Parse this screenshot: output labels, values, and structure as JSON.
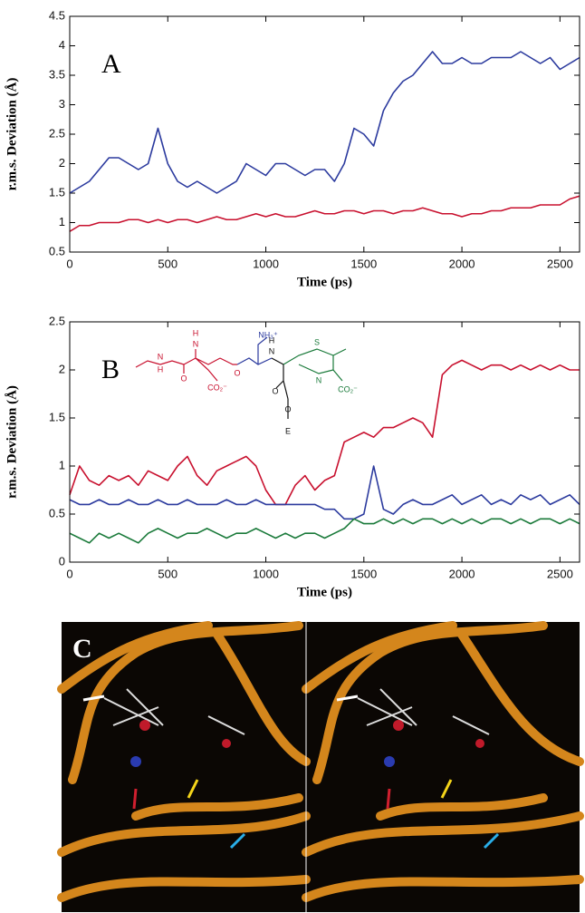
{
  "chart_data": [
    {
      "type": "line",
      "panel_label": "A",
      "x_label": "Time (ps)",
      "y_label": "r.m.s. Deviation (Å)",
      "xlim": [
        0,
        2600
      ],
      "xticks": [
        0,
        500,
        1000,
        1500,
        2000,
        2500
      ],
      "ylim": [
        0.5,
        4.5
      ],
      "yticks": [
        0.5,
        1,
        1.5,
        2,
        2.5,
        3,
        3.5,
        4,
        4.5
      ],
      "x": [
        0,
        50,
        100,
        150,
        200,
        250,
        300,
        350,
        400,
        450,
        500,
        550,
        600,
        650,
        700,
        750,
        800,
        850,
        900,
        950,
        1000,
        1050,
        1100,
        1150,
        1200,
        1250,
        1300,
        1350,
        1400,
        1450,
        1500,
        1550,
        1600,
        1650,
        1700,
        1750,
        1800,
        1850,
        1900,
        1950,
        2000,
        2050,
        2100,
        2150,
        2200,
        2250,
        2300,
        2350,
        2400,
        2450,
        2500,
        2550,
        2600
      ],
      "series": [
        {
          "color": "#2b3a9e",
          "values": [
            1.5,
            1.6,
            1.7,
            1.9,
            2.1,
            2.1,
            2.0,
            1.9,
            2.0,
            2.6,
            2.0,
            1.7,
            1.6,
            1.7,
            1.6,
            1.5,
            1.6,
            1.7,
            2.0,
            1.9,
            1.8,
            2.0,
            2.0,
            1.9,
            1.8,
            1.9,
            1.9,
            1.7,
            2.0,
            2.6,
            2.5,
            2.3,
            2.9,
            3.2,
            3.4,
            3.5,
            3.7,
            3.9,
            3.7,
            3.7,
            3.8,
            3.7,
            3.7,
            3.8,
            3.8,
            3.8,
            3.9,
            3.8,
            3.7,
            3.8,
            3.6,
            3.7,
            3.8
          ]
        },
        {
          "color": "#c8102e",
          "values": [
            0.85,
            0.95,
            0.95,
            1.0,
            1.0,
            1.0,
            1.05,
            1.05,
            1.0,
            1.05,
            1.0,
            1.05,
            1.05,
            1.0,
            1.05,
            1.1,
            1.05,
            1.05,
            1.1,
            1.15,
            1.1,
            1.15,
            1.1,
            1.1,
            1.15,
            1.2,
            1.15,
            1.15,
            1.2,
            1.2,
            1.15,
            1.2,
            1.2,
            1.15,
            1.2,
            1.2,
            1.25,
            1.2,
            1.15,
            1.15,
            1.1,
            1.15,
            1.15,
            1.2,
            1.2,
            1.25,
            1.25,
            1.25,
            1.3,
            1.3,
            1.3,
            1.4,
            1.45
          ]
        }
      ]
    },
    {
      "type": "line",
      "panel_label": "B",
      "x_label": "Time (ps)",
      "y_label": "r.m.s. Deviation (Å)",
      "xlim": [
        0,
        2600
      ],
      "xticks": [
        0,
        500,
        1000,
        1500,
        2000,
        2500
      ],
      "ylim": [
        0,
        2.5
      ],
      "yticks": [
        0,
        0.5,
        1,
        1.5,
        2,
        2.5
      ],
      "x": [
        0,
        50,
        100,
        150,
        200,
        250,
        300,
        350,
        400,
        450,
        500,
        550,
        600,
        650,
        700,
        750,
        800,
        850,
        900,
        950,
        1000,
        1050,
        1100,
        1150,
        1200,
        1250,
        1300,
        1350,
        1400,
        1450,
        1500,
        1550,
        1600,
        1650,
        1700,
        1750,
        1800,
        1850,
        1900,
        1950,
        2000,
        2050,
        2100,
        2150,
        2200,
        2250,
        2300,
        2350,
        2400,
        2450,
        2500,
        2550,
        2600
      ],
      "series": [
        {
          "color": "#c8102e",
          "values": [
            0.7,
            1.0,
            0.85,
            0.8,
            0.9,
            0.85,
            0.9,
            0.8,
            0.95,
            0.9,
            0.85,
            1.0,
            1.1,
            0.9,
            0.8,
            0.95,
            1.0,
            1.05,
            1.1,
            1.0,
            0.75,
            0.6,
            0.6,
            0.8,
            0.9,
            0.75,
            0.85,
            0.9,
            1.25,
            1.3,
            1.35,
            1.3,
            1.4,
            1.4,
            1.45,
            1.5,
            1.45,
            1.3,
            1.95,
            2.05,
            2.1,
            2.05,
            2.0,
            2.05,
            2.05,
            2.0,
            2.05,
            2.0,
            2.05,
            2.0,
            2.05,
            2.0,
            2.0
          ]
        },
        {
          "color": "#2b3a9e",
          "values": [
            0.65,
            0.6,
            0.6,
            0.65,
            0.6,
            0.6,
            0.65,
            0.6,
            0.6,
            0.65,
            0.6,
            0.6,
            0.65,
            0.6,
            0.6,
            0.6,
            0.65,
            0.6,
            0.6,
            0.65,
            0.6,
            0.6,
            0.6,
            0.6,
            0.6,
            0.6,
            0.55,
            0.55,
            0.45,
            0.45,
            0.5,
            1.0,
            0.55,
            0.5,
            0.6,
            0.65,
            0.6,
            0.6,
            0.65,
            0.7,
            0.6,
            0.65,
            0.7,
            0.6,
            0.65,
            0.6,
            0.7,
            0.65,
            0.7,
            0.6,
            0.65,
            0.7,
            0.6
          ]
        },
        {
          "color": "#1a7a3a",
          "values": [
            0.3,
            0.25,
            0.2,
            0.3,
            0.25,
            0.3,
            0.25,
            0.2,
            0.3,
            0.35,
            0.3,
            0.25,
            0.3,
            0.3,
            0.35,
            0.3,
            0.25,
            0.3,
            0.3,
            0.35,
            0.3,
            0.25,
            0.3,
            0.25,
            0.3,
            0.3,
            0.25,
            0.3,
            0.35,
            0.45,
            0.4,
            0.4,
            0.45,
            0.4,
            0.45,
            0.4,
            0.45,
            0.45,
            0.4,
            0.45,
            0.4,
            0.45,
            0.4,
            0.45,
            0.45,
            0.4,
            0.45,
            0.4,
            0.45,
            0.45,
            0.4,
            0.45,
            0.4
          ]
        }
      ],
      "annotations": [
        "NH₃⁺",
        "N",
        "H",
        "O",
        "CO₂⁻",
        "N",
        "H",
        "O",
        "N",
        "H",
        "O",
        "O",
        "E",
        "S",
        "N",
        "CO₂⁻"
      ]
    }
  ],
  "image_panel": {
    "label": "C"
  }
}
